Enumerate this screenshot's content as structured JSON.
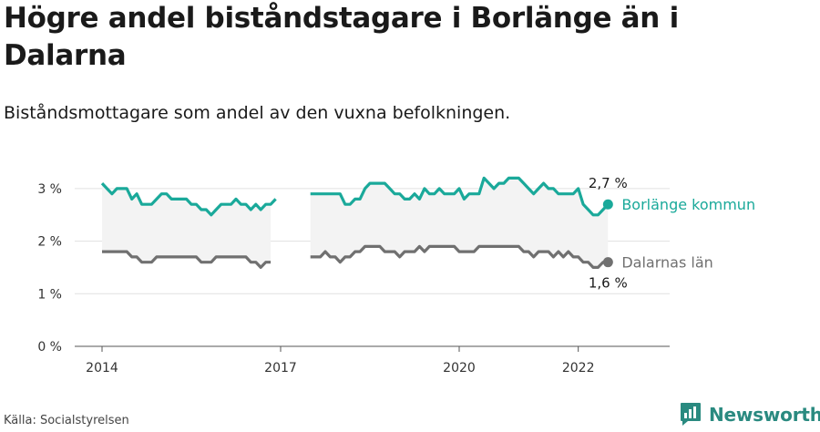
{
  "title": "Högre andel biståndstagare i Borlänge än i Dalarna",
  "subtitle": "Biståndsmottagare som andel av den vuxna befolkningen.",
  "source": "Källa: Socialstyrelsen",
  "brand": "Newsworthy",
  "colors": {
    "series_a": "#1aa99a",
    "series_b": "#707070",
    "band": "#f3f3f3",
    "grid": "#e0e0e0",
    "brand": "#2a8a80"
  },
  "chart_data": {
    "type": "line",
    "x_unit": "month",
    "x_start": "2014-01",
    "x_ticks": [
      {
        "label": "2014",
        "date": "2014-01"
      },
      {
        "label": "2017",
        "date": "2017-01"
      },
      {
        "label": "2020",
        "date": "2020-01"
      },
      {
        "label": "2022",
        "date": "2022-01"
      }
    ],
    "y_ticks": [
      {
        "value": 0,
        "label": "0 %"
      },
      {
        "value": 1,
        "label": "1 %"
      },
      {
        "value": 2,
        "label": "2 %"
      },
      {
        "value": 3,
        "label": "3 %"
      }
    ],
    "ylim": [
      0,
      3.3
    ],
    "series": [
      {
        "name": "Borlänge kommun",
        "end_label": "2,7 %",
        "values": [
          3.1,
          3.0,
          2.9,
          3.0,
          3.0,
          3.0,
          2.8,
          2.9,
          2.7,
          2.7,
          2.7,
          2.8,
          2.9,
          2.9,
          2.8,
          2.8,
          2.8,
          2.8,
          2.7,
          2.7,
          2.6,
          2.6,
          2.5,
          2.6,
          2.7,
          2.7,
          2.7,
          2.8,
          2.7,
          2.7,
          2.6,
          2.7,
          2.6,
          2.7,
          2.7,
          2.8,
          null,
          null,
          null,
          null,
          null,
          null,
          2.9,
          2.9,
          2.9,
          2.9,
          2.9,
          2.9,
          2.9,
          2.7,
          2.7,
          2.8,
          2.8,
          3.0,
          3.1,
          3.1,
          3.1,
          3.1,
          3.0,
          2.9,
          2.9,
          2.8,
          2.8,
          2.9,
          2.8,
          3.0,
          2.9,
          2.9,
          3.0,
          2.9,
          2.9,
          2.9,
          3.0,
          2.8,
          2.9,
          2.9,
          2.9,
          3.2,
          3.1,
          3.0,
          3.1,
          3.1,
          3.2,
          3.2,
          3.2,
          3.1,
          3.0,
          2.9,
          3.0,
          3.1,
          3.0,
          3.0,
          2.9,
          2.9,
          2.9,
          2.9,
          3.0,
          2.7,
          2.6,
          2.5,
          2.5,
          2.6,
          2.7
        ]
      },
      {
        "name": "Dalarnas län",
        "end_label": "1,6 %",
        "values": [
          1.8,
          1.8,
          1.8,
          1.8,
          1.8,
          1.8,
          1.7,
          1.7,
          1.6,
          1.6,
          1.6,
          1.7,
          1.7,
          1.7,
          1.7,
          1.7,
          1.7,
          1.7,
          1.7,
          1.7,
          1.6,
          1.6,
          1.6,
          1.7,
          1.7,
          1.7,
          1.7,
          1.7,
          1.7,
          1.7,
          1.6,
          1.6,
          1.5,
          1.6,
          1.6,
          null,
          null,
          null,
          null,
          null,
          null,
          null,
          1.7,
          1.7,
          1.7,
          1.8,
          1.7,
          1.7,
          1.6,
          1.7,
          1.7,
          1.8,
          1.8,
          1.9,
          1.9,
          1.9,
          1.9,
          1.8,
          1.8,
          1.8,
          1.7,
          1.8,
          1.8,
          1.8,
          1.9,
          1.8,
          1.9,
          1.9,
          1.9,
          1.9,
          1.9,
          1.9,
          1.8,
          1.8,
          1.8,
          1.8,
          1.9,
          1.9,
          1.9,
          1.9,
          1.9,
          1.9,
          1.9,
          1.9,
          1.9,
          1.8,
          1.8,
          1.7,
          1.8,
          1.8,
          1.8,
          1.7,
          1.8,
          1.7,
          1.8,
          1.7,
          1.7,
          1.6,
          1.6,
          1.5,
          1.5,
          1.6,
          1.6
        ]
      }
    ]
  }
}
